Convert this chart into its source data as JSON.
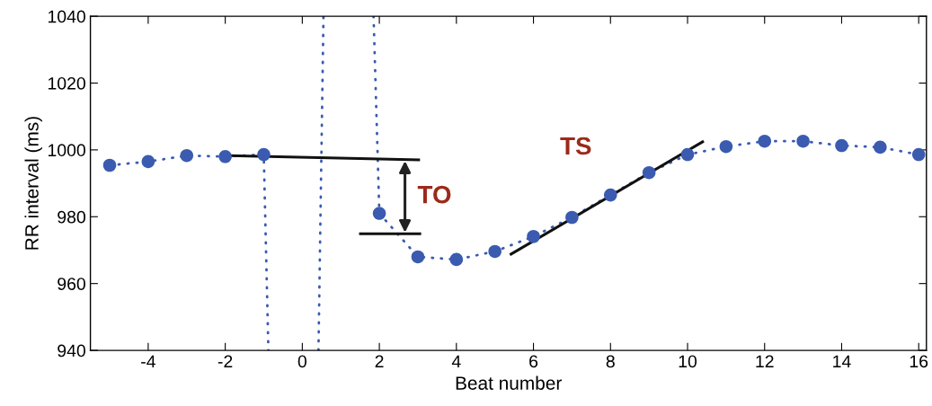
{
  "chart_data": {
    "type": "scatter",
    "xlabel": "Beat number",
    "ylabel": "RR interval (ms)",
    "xlim": [
      -5.5,
      16.2
    ],
    "ylim": [
      940,
      1040
    ],
    "xticks": [
      -4,
      -2,
      0,
      2,
      4,
      6,
      8,
      10,
      12,
      14,
      16
    ],
    "yticks": [
      940,
      960,
      980,
      1000,
      1020,
      1040
    ],
    "grid": false,
    "legend": false,
    "series": [
      {
        "type": "line",
        "color": "#3a5bb0",
        "line_style": "dotted",
        "marker": "none",
        "x": [
          -5,
          -4,
          -3,
          -2,
          -1,
          -0.88,
          0,
          0.42,
          0.55,
          1,
          1.85,
          2,
          3,
          4,
          5,
          6,
          7,
          8,
          9,
          10,
          11,
          12,
          13,
          14,
          15,
          16
        ],
        "values": [
          995.4,
          996.5,
          998.3,
          998,
          998.6,
          940,
          null,
          940,
          1040,
          null,
          1040,
          981,
          968,
          967.2,
          969.6,
          974.1,
          979.8,
          986.5,
          993.2,
          998.6,
          1001,
          1002.6,
          1002.6,
          1001.3,
          1000.8,
          998.6
        ]
      },
      {
        "color": "#3a5bb0",
        "marker": "circle",
        "x": [
          -5,
          -4,
          -3,
          -2,
          -1,
          2,
          3,
          4,
          5,
          6,
          7,
          8,
          9,
          10,
          11,
          12,
          13,
          14,
          15,
          16
        ],
        "values": [
          995.4,
          996.5,
          998.3,
          998,
          998.6,
          981,
          968,
          967.2,
          969.6,
          974.1,
          979.8,
          986.5,
          993.2,
          998.6,
          1001,
          1002.6,
          1002.6,
          1001.3,
          1000.8,
          998.6
        ]
      },
      {
        "type": "line",
        "color": "#111111",
        "line_style": "solid",
        "marker": "none",
        "x": [
          -2.03,
          3.02
        ],
        "values": [
          998.3,
          997
        ]
      },
      {
        "type": "line",
        "color": "#111111",
        "line_style": "solid",
        "marker": "none",
        "x": [
          1.51,
          3.05
        ],
        "values": [
          974.9,
          974.9
        ]
      },
      {
        "type": "line",
        "color": "#111111",
        "line_style": "solid",
        "marker": "none",
        "x": [
          5.42,
          10.39
        ],
        "values": [
          968.8,
          1002.4
        ]
      }
    ],
    "annotations": [
      "TO",
      "TS"
    ]
  }
}
